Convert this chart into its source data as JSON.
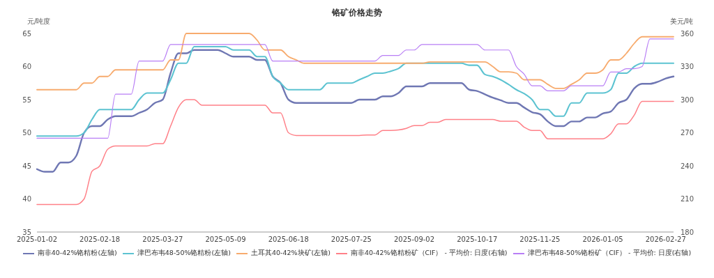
{
  "chart_data": {
    "type": "line",
    "title": "铬矿价格走势",
    "ylabel": "元/吨度",
    "y2label": "美元/吨",
    "categories": [
      "2025-01-02",
      null,
      null,
      null,
      null,
      null,
      null,
      null,
      "2025-02-18",
      null,
      null,
      null,
      null,
      null,
      null,
      null,
      "2025-03-27",
      null,
      null,
      null,
      null,
      null,
      null,
      null,
      "2025-05-09",
      null,
      null,
      null,
      null,
      null,
      null,
      null,
      "2025-06-18",
      null,
      null,
      null,
      null,
      null,
      null,
      null,
      "2025-07-25",
      null,
      null,
      null,
      null,
      null,
      null,
      null,
      "2025-09-02",
      null,
      null,
      null,
      null,
      null,
      null,
      null,
      "2025-10-17",
      null,
      null,
      null,
      null,
      null,
      null,
      null,
      "2025-11-25",
      null,
      null,
      null,
      null,
      null,
      null,
      null,
      "2026-01-05",
      null,
      null,
      null,
      null,
      null,
      null,
      null,
      "2026-02-27",
      null
    ],
    "ylim": [
      35,
      65
    ],
    "yticks": [
      35,
      40,
      45,
      50,
      55,
      60,
      65
    ],
    "y2lim": [
      180,
      360
    ],
    "y2ticks": [
      180,
      210,
      240,
      270,
      300,
      330,
      360
    ],
    "legend": "bottom",
    "marker": "none",
    "line_style": "solid",
    "series": [
      {
        "name": "南非40-42%铬精粉(左轴)",
        "color": "#6f77b3",
        "values": [
          44.5,
          44.1,
          44.1,
          45.5,
          45.5,
          46.5,
          50,
          51,
          51,
          52,
          52.5,
          52.5,
          52.5,
          53,
          53.5,
          54.5,
          55,
          59,
          62,
          62,
          62.5,
          62.5,
          62.5,
          62.5,
          62,
          61.5,
          61.5,
          61.5,
          61,
          61,
          58.5,
          57.5,
          55,
          54.5,
          54.5,
          54.5,
          54.5,
          54.5,
          54.5,
          54.5,
          54.5,
          55,
          55,
          55,
          55.5,
          55.5,
          56,
          57,
          57,
          57,
          57.5,
          57.5,
          57.5,
          57.5,
          57.5,
          56.5,
          56.3,
          55.8,
          55.3,
          54.9,
          54.5,
          54.5,
          53.8,
          53.1,
          52.8,
          51.7,
          51,
          51,
          51.7,
          51.7,
          52.3,
          52.3,
          52.9,
          53.2,
          54.5,
          55,
          56.7,
          57.4,
          57.4,
          57.7,
          58.2,
          58.5
        ]
      },
      {
        "name": "津巴布韦48-50%铬精粉(左轴)",
        "color": "#5cc3d1",
        "values": [
          49.5,
          49.5,
          49.5,
          49.5,
          49.5,
          49.5,
          50,
          52,
          53.5,
          53.5,
          53.5,
          53.5,
          53.5,
          55,
          56,
          56,
          56,
          58,
          60.5,
          60.5,
          63,
          63,
          63,
          63,
          63,
          62.5,
          62.5,
          62.5,
          61.5,
          61.5,
          58.5,
          57.5,
          56.5,
          56.5,
          56.5,
          56.5,
          56.5,
          57.5,
          57.5,
          57.5,
          57.5,
          58,
          58.5,
          59,
          59,
          59.3,
          59.7,
          60.5,
          60.5,
          60.5,
          60.5,
          60.5,
          60.5,
          60.5,
          60.5,
          60.2,
          60.2,
          58.8,
          58.5,
          58,
          57.3,
          56.5,
          55.9,
          55,
          53.5,
          53.5,
          52.5,
          52.5,
          54.5,
          54.5,
          56,
          56,
          56,
          56.5,
          59,
          59,
          60,
          60.5,
          60.5,
          60.5,
          60.5,
          60.5
        ]
      },
      {
        "name": "土耳其40-42%块矿(左轴)",
        "color": "#f7ab6e",
        "values": [
          56.5,
          56.5,
          56.5,
          56.5,
          56.5,
          56.5,
          57.5,
          57.5,
          58.5,
          58.5,
          59.5,
          59.5,
          59.5,
          59.5,
          59.5,
          59.5,
          59.5,
          61,
          61,
          65,
          65,
          65,
          65,
          65,
          65,
          65,
          65,
          65,
          64,
          62.5,
          62.5,
          62.5,
          61.5,
          61,
          60.5,
          60.5,
          60.5,
          60.5,
          60.5,
          60.5,
          60.5,
          60.5,
          60.5,
          60.5,
          60.5,
          60.5,
          60.5,
          60.5,
          60.5,
          60.5,
          60.7,
          60.7,
          60.7,
          60.7,
          60.7,
          60.7,
          60.7,
          60.7,
          60,
          59.2,
          59.2,
          59,
          58,
          58,
          58,
          57.3,
          56.7,
          56.7,
          57.3,
          58,
          59,
          59,
          59.5,
          61,
          61,
          62,
          63.5,
          64.5,
          64.5,
          64.5,
          64.5,
          64.5
        ]
      },
      {
        "name": "南非40-42%铬精粉矿（CIF） - 平均价: 日度(右轴)",
        "color": "#ff8088",
        "axis": "y2",
        "values": [
          205,
          205,
          205,
          205,
          205,
          205,
          210,
          235,
          240,
          255,
          258,
          258,
          258,
          258,
          258,
          260,
          260,
          276,
          293,
          300,
          300,
          295,
          295,
          295,
          295,
          295,
          295,
          295,
          295,
          295,
          288,
          288,
          270,
          267.5,
          267.5,
          267.5,
          267.5,
          267.5,
          267.5,
          267.5,
          267.5,
          267.5,
          268,
          268,
          272,
          272,
          272.5,
          274,
          276.5,
          276.5,
          279.5,
          279.5,
          282,
          282,
          282,
          282,
          282,
          282,
          282,
          280.5,
          280.5,
          280.5,
          275,
          272,
          272,
          264.5,
          264.5,
          264.5,
          264.5,
          264.5,
          264.5,
          264.5,
          264.5,
          269,
          278,
          278,
          286,
          298.5,
          298.5,
          298.5,
          298.5,
          298.5
        ]
      },
      {
        "name": "津巴布韦48-50%铬粉矿（CIF） - 平均价: 日度(右轴)",
        "color": "#b87ef5",
        "axis": "y2",
        "values": [
          265,
          265,
          265,
          265,
          265,
          265,
          265,
          265,
          265,
          265,
          305,
          305,
          305,
          335,
          335,
          335,
          335,
          350,
          350,
          350,
          350,
          350,
          350,
          350,
          350,
          350,
          350,
          350,
          350,
          350,
          335,
          335,
          335,
          335,
          335,
          335,
          335,
          335,
          335,
          335,
          335,
          335,
          335,
          335,
          340,
          340,
          340,
          345,
          345,
          350,
          350,
          350,
          350,
          350,
          350,
          350,
          350,
          345,
          345,
          345,
          345,
          330,
          323,
          312.5,
          312.5,
          308,
          308,
          308,
          312.5,
          312.5,
          312.5,
          312.5,
          312.5,
          325,
          325,
          328,
          328,
          330,
          355,
          355,
          355,
          355
        ]
      }
    ]
  }
}
